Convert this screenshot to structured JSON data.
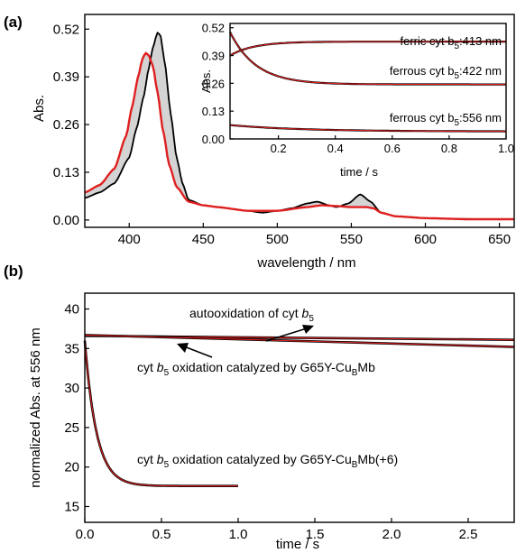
{
  "chart_data": [
    {
      "type": "line",
      "panel": "(a)",
      "xlabel": "wavelength / nm",
      "ylabel": "Abs.",
      "xlim": [
        370,
        660
      ],
      "ylim": [
        -0.02,
        0.56
      ],
      "xticks": [
        "400",
        "450",
        "500",
        "550",
        "600",
        "650"
      ],
      "yticks": [
        "0.00",
        "0.13",
        "0.26",
        "0.39",
        "0.52"
      ],
      "fill_between_series": true,
      "series": [
        {
          "color": "#000000",
          "x": [
            370,
            380,
            390,
            400,
            405,
            410,
            413,
            416,
            419,
            421,
            424,
            428,
            432,
            436,
            440,
            450,
            460,
            470,
            480,
            490,
            500,
            510,
            520,
            527,
            535,
            540,
            548,
            556,
            563,
            570,
            580,
            590,
            600,
            620,
            640,
            660
          ],
          "y": [
            0.06,
            0.075,
            0.1,
            0.17,
            0.25,
            0.34,
            0.41,
            0.47,
            0.51,
            0.505,
            0.43,
            0.29,
            0.17,
            0.1,
            0.055,
            0.04,
            0.035,
            0.03,
            0.025,
            0.02,
            0.025,
            0.032,
            0.045,
            0.05,
            0.04,
            0.035,
            0.045,
            0.07,
            0.05,
            0.02,
            0.01,
            0.008,
            0.005,
            0.003,
            0.002,
            0.002
          ]
        },
        {
          "color": "#e02020",
          "x": [
            370,
            380,
            390,
            398,
            402,
            406,
            409,
            411,
            413,
            416,
            419,
            423,
            427,
            432,
            440,
            450,
            460,
            480,
            500,
            520,
            530,
            540,
            550,
            560,
            565,
            570,
            580,
            600,
            630,
            660
          ],
          "y": [
            0.075,
            0.095,
            0.14,
            0.23,
            0.31,
            0.39,
            0.44,
            0.455,
            0.45,
            0.42,
            0.35,
            0.24,
            0.15,
            0.09,
            0.05,
            0.04,
            0.035,
            0.025,
            0.025,
            0.035,
            0.04,
            0.038,
            0.035,
            0.035,
            0.032,
            0.02,
            0.01,
            0.005,
            0.002,
            0.002
          ]
        }
      ]
    },
    {
      "type": "line",
      "panel": "(a) inset",
      "xlabel": "time / s",
      "ylabel": "Abs.",
      "xlim": [
        0.03,
        1.0
      ],
      "ylim": [
        0.0,
        0.54
      ],
      "xticks": [
        "0.2",
        "0.4",
        "0.6",
        "0.8",
        "1.0"
      ],
      "yticks": [
        "0.00",
        "0.13",
        "0.26",
        "0.39",
        "0.52"
      ],
      "fit_color": "#e02020",
      "series": [
        {
          "label": "ferric cyt b5:413 nm",
          "start": 0.39,
          "end": 0.455,
          "rate": 12
        },
        {
          "label": "ferrous cyt b5:422 nm",
          "start": 0.5,
          "end": 0.255,
          "rate": 11
        },
        {
          "label": "ferrous cyt b5:556 nm",
          "start": 0.065,
          "end": 0.035,
          "rate": 4
        }
      ]
    },
    {
      "type": "line",
      "panel": "(b)",
      "xlabel": "time / s",
      "ylabel": "normalized Abs. at 556 nm",
      "xlim": [
        0.0,
        2.8
      ],
      "ylim": [
        13.0,
        42.0
      ],
      "xticks": [
        "0.0",
        "0.5",
        "1.0",
        "1.5",
        "2.0",
        "2.5"
      ],
      "yticks": [
        "15",
        "20",
        "25",
        "30",
        "35",
        "40"
      ],
      "fit_color": "#e02020",
      "series": [
        {
          "label": "autooxidation of cyt b5",
          "x": [
            0.0,
            2.8
          ],
          "y": [
            36.6,
            36.1
          ]
        },
        {
          "label": "cyt b5 oxidation catalyzed by G65Y-CuBMb",
          "x": [
            0.0,
            2.8
          ],
          "y": [
            36.7,
            35.2
          ]
        },
        {
          "label": "cyt b5 oxidation catalyzed by G65Y-CuBMb(+6)",
          "x_max": 1.0,
          "start": 36.0,
          "end": 17.6,
          "rate": 13
        }
      ]
    }
  ],
  "labels": {
    "panel_a": "(a)",
    "panel_b": "(b)",
    "inset_ferric": "ferric cyt b",
    "inset_ferric_sub": "5",
    "inset_ferric_suffix": ":413 nm",
    "inset_ferrous422": "ferrous cyt b",
    "inset_ferrous422_sub": "5",
    "inset_ferrous422_suffix": ":422 nm",
    "inset_ferrous556": "ferrous cyt b",
    "inset_ferrous556_sub": "5",
    "inset_ferrous556_suffix": ":556 nm",
    "b_auto": "autooxidation of cyt ",
    "b_auto_italic": "b",
    "b_auto_sub": "5",
    "b_cat1_pre": "cyt ",
    "b_cat1_italic": "b",
    "b_cat1_sub": "5",
    "b_cat1_mid": " oxidation catalyzed by G65Y-Cu",
    "b_cat1_sub2": "B",
    "b_cat1_post": "Mb",
    "b_cat2_pre": "cyt ",
    "b_cat2_italic": "b",
    "b_cat2_sub": "5",
    "b_cat2_mid": " oxidation catalyzed by G65Y-Cu",
    "b_cat2_sub2": "B",
    "b_cat2_post": "Mb(+6)"
  }
}
